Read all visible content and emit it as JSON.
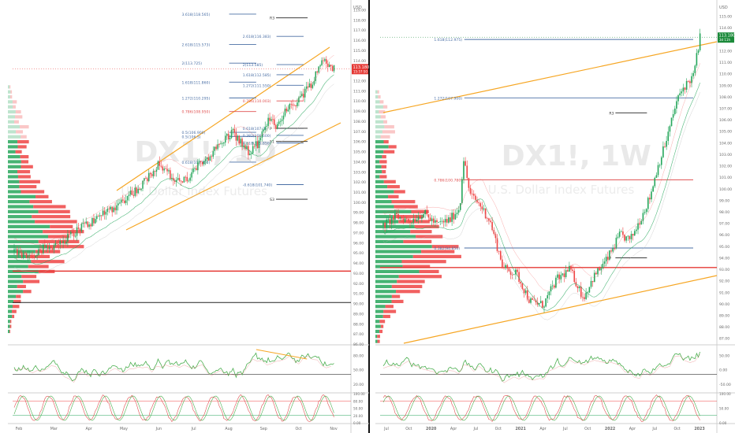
{
  "colors": {
    "up": "#26a65b",
    "down": "#ef4444",
    "fib": "#4a6fa5",
    "fib_dark": "#333333",
    "fib_red": "#e05050",
    "channel": "#f6a623",
    "hline_red": "#e53935",
    "hline_black": "#222222",
    "rsi_line": "#4caf50",
    "stoch_red": "#e05050",
    "stoch_green": "#4caf50",
    "price_badge": "#e53935",
    "price_badge_right": "#1b8a3a",
    "axis_text": "#6a6a6a"
  },
  "chart_data": [
    {
      "type": "candlestick",
      "symbol_watermark": "DX1!, 1D",
      "subtitle_watermark": "U.S. Dollar Index Futures",
      "currency": "USD",
      "x_ticks": [
        "Feb",
        "Mar",
        "Apr",
        "May",
        "Jun",
        "Jul",
        "Aug",
        "Sep",
        "Oct",
        "Nov"
      ],
      "y_ticks": [
        86.0,
        87.0,
        88.0,
        89.0,
        90.0,
        91.0,
        92.0,
        93.0,
        94.0,
        95.0,
        96.0,
        97.0,
        98.0,
        99.0,
        100.0,
        101.0,
        102.0,
        103.0,
        104.0,
        105.0,
        106.0,
        107.0,
        108.0,
        109.0,
        110.0,
        111.0,
        112.0,
        113.0,
        114.0,
        115.0,
        116.0,
        117.0,
        118.0,
        119.0
      ],
      "ylim": [
        86,
        119.5
      ],
      "last_price": "113.180",
      "countdown": "15:57:50",
      "price_path": [
        [
          0,
          95.1
        ],
        [
          0.04,
          94.7
        ],
        [
          0.08,
          95.3
        ],
        [
          0.12,
          95.8
        ],
        [
          0.16,
          96.5
        ],
        [
          0.2,
          97.6
        ],
        [
          0.24,
          98.2
        ],
        [
          0.27,
          99.1
        ],
        [
          0.31,
          99.7
        ],
        [
          0.34,
          100.8
        ],
        [
          0.37,
          101.3
        ],
        [
          0.4,
          102.6
        ],
        [
          0.43,
          103.9
        ],
        [
          0.46,
          102.8
        ],
        [
          0.48,
          101.9
        ],
        [
          0.52,
          102.4
        ],
        [
          0.55,
          103.8
        ],
        [
          0.58,
          104.6
        ],
        [
          0.6,
          105.3
        ],
        [
          0.63,
          106.4
        ],
        [
          0.65,
          106.9
        ],
        [
          0.68,
          105.6
        ],
        [
          0.7,
          104.8
        ],
        [
          0.73,
          106.1
        ],
        [
          0.76,
          108.4
        ],
        [
          0.78,
          107.5
        ],
        [
          0.8,
          108.9
        ],
        [
          0.83,
          109.6
        ],
        [
          0.85,
          110.4
        ],
        [
          0.88,
          111.6
        ],
        [
          0.9,
          112.9
        ],
        [
          0.92,
          114.3
        ],
        [
          0.93,
          113.7
        ],
        [
          0.95,
          113.2
        ]
      ],
      "fib_levels": [
        {
          "label": "3.618(118.565)",
          "value": 118.57
        },
        {
          "label": "2.618(116.383)",
          "value": 116.38
        },
        {
          "label": "2.618(115.573)",
          "value": 115.57
        },
        {
          "label": "2(113.585)",
          "value": 113.59
        },
        {
          "label": "2(113.725)",
          "value": 113.73
        },
        {
          "label": "1.618(112.585)",
          "value": 112.59
        },
        {
          "label": "1.618(111.860)",
          "value": 111.86
        },
        {
          "label": "1.272(111.550)",
          "value": 111.55
        },
        {
          "label": "1.272(110.295)",
          "value": 110.3
        },
        {
          "label": "0.786(110.003)",
          "value": 110.0
        },
        {
          "label": "0.786(108.950)",
          "value": 108.95
        },
        {
          "label": "0.618(107.3)",
          "value": 107.3
        },
        {
          "label": "0.5(106.900)",
          "value": 106.9
        },
        {
          "label": "0.382(106.600)",
          "value": 106.6
        },
        {
          "label": "0.5(106.5)",
          "value": 106.5
        },
        {
          "label": "0.618(105.850)",
          "value": 105.85
        },
        {
          "label": "0.618(103.960)",
          "value": 103.96
        },
        {
          "label": "-0.618(101.740)",
          "value": 101.74
        }
      ],
      "pivot_labels": [
        {
          "label": "R3",
          "value": 118.2
        },
        {
          "label": "P",
          "value": 107.3
        },
        {
          "label": "S1",
          "value": 106.0
        },
        {
          "label": "S3",
          "value": 100.3
        }
      ],
      "red_hline": 93.2,
      "black_hline": 90.1,
      "rsi_ticks": [
        "80.00",
        "50.00",
        "20.00"
      ],
      "stoch_ticks": [
        "100.00",
        "80.00",
        "50.00",
        "20.00",
        "0.00"
      ]
    },
    {
      "type": "candlestick",
      "symbol_watermark": "DX1!, 1W",
      "subtitle_watermark": "U.S. Dollar Index Futures",
      "currency": "USD",
      "x_ticks": [
        "Jul",
        "Oct",
        "2020",
        "Apr",
        "Jul",
        "Oct",
        "2021",
        "Apr",
        "Jul",
        "Oct",
        "2022",
        "Apr",
        "Jul",
        "Oct",
        "2023"
      ],
      "y_ticks": [
        87.0,
        88.0,
        89.0,
        90.0,
        91.0,
        92.0,
        93.0,
        94.0,
        95.0,
        96.0,
        97.0,
        98.0,
        99.0,
        100.0,
        101.0,
        102.0,
        103.0,
        104.0,
        105.0,
        106.0,
        107.0,
        108.0,
        109.0,
        110.0,
        111.0,
        112.0,
        113.0,
        114.0,
        115.0
      ],
      "ylim": [
        86.5,
        116.0
      ],
      "last_price": "113.180",
      "countdown": "3d 11h",
      "price_path": [
        [
          0,
          96.8
        ],
        [
          0.04,
          97.6
        ],
        [
          0.08,
          97.2
        ],
        [
          0.12,
          97.9
        ],
        [
          0.16,
          96.9
        ],
        [
          0.2,
          97.3
        ],
        [
          0.23,
          98.4
        ],
        [
          0.24,
          102.8
        ],
        [
          0.26,
          99.5
        ],
        [
          0.29,
          98.6
        ],
        [
          0.32,
          97.2
        ],
        [
          0.36,
          93.1
        ],
        [
          0.4,
          92.6
        ],
        [
          0.44,
          90.2
        ],
        [
          0.48,
          89.9
        ],
        [
          0.52,
          92.1
        ],
        [
          0.56,
          93.0
        ],
        [
          0.6,
          90.5
        ],
        [
          0.63,
          92.3
        ],
        [
          0.67,
          93.8
        ],
        [
          0.71,
          96.0
        ],
        [
          0.74,
          95.5
        ],
        [
          0.77,
          97.3
        ],
        [
          0.8,
          99.3
        ],
        [
          0.82,
          101.6
        ],
        [
          0.85,
          104.3
        ],
        [
          0.88,
          107.6
        ],
        [
          0.9,
          108.8
        ],
        [
          0.93,
          109.8
        ],
        [
          0.95,
          113.2
        ]
      ],
      "fib_levels": [
        {
          "label": "1.618(112.975)",
          "value": 112.98
        },
        {
          "label": "1.272(107.900)",
          "value": 107.9
        },
        {
          "label": "0.786(100.780)",
          "value": 100.78
        },
        {
          "label": "0.382(94.850)",
          "value": 94.85
        }
      ],
      "pivot_labels": [
        {
          "label": "R3",
          "value": 106.6
        },
        {
          "label": "P",
          "value": 94.0
        }
      ],
      "red_hline": 93.15,
      "rsi_ticks": [
        "50.00",
        "0.00",
        "-50.00"
      ],
      "stoch_ticks": [
        "100.00",
        "50.00",
        "0.00"
      ]
    }
  ]
}
